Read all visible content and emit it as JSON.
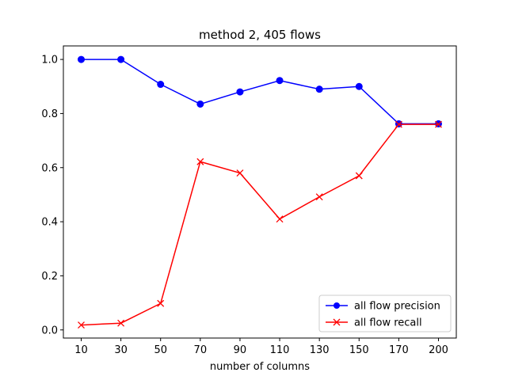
{
  "chart_data": {
    "type": "line",
    "title": "method 2, 405 flows",
    "xlabel": "number of columns",
    "ylabel": "",
    "categories": [
      "10",
      "30",
      "50",
      "70",
      "90",
      "110",
      "130",
      "150",
      "170",
      "200"
    ],
    "ylim": [
      -0.03,
      1.05
    ],
    "yticks": [
      0.0,
      0.2,
      0.4,
      0.6,
      0.8,
      1.0
    ],
    "ytick_labels": [
      "0.0",
      "0.2",
      "0.4",
      "0.6",
      "0.8",
      "1.0"
    ],
    "grid": false,
    "legend_position": "lower-right",
    "series": [
      {
        "name": "all flow precision",
        "color": "#0000ff",
        "marker": "circle",
        "values": [
          1.0,
          1.0,
          0.908,
          0.835,
          0.88,
          0.922,
          0.89,
          0.9,
          0.762,
          0.762
        ]
      },
      {
        "name": "all flow recall",
        "color": "#ff0000",
        "marker": "x",
        "values": [
          0.018,
          0.025,
          0.098,
          0.622,
          0.58,
          0.41,
          0.492,
          0.57,
          0.76,
          0.76
        ]
      }
    ]
  }
}
